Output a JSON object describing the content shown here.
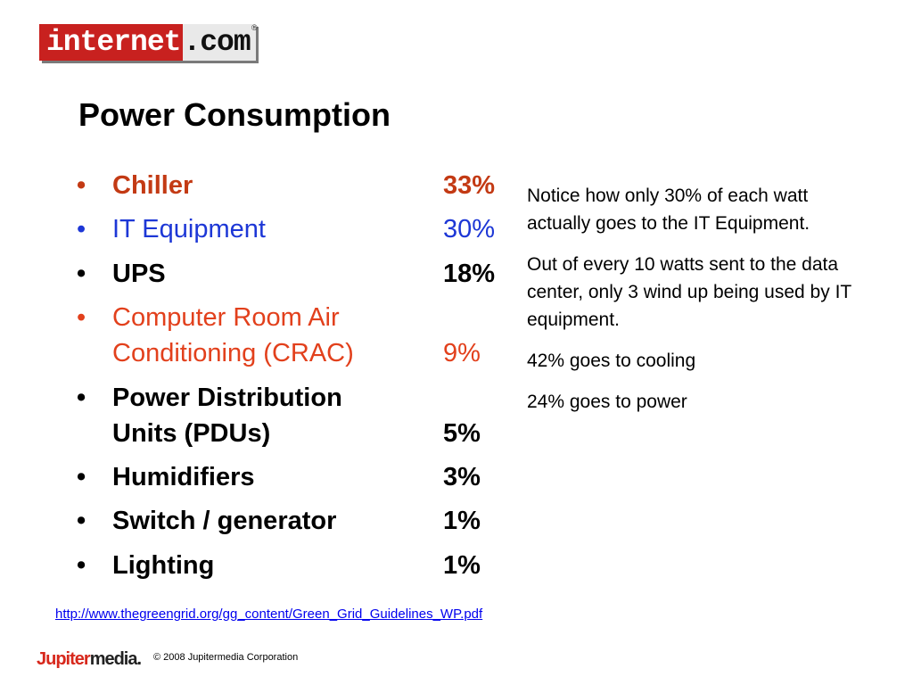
{
  "logo": {
    "left_text": "internet",
    "right_text": ".com",
    "reg_mark": "®"
  },
  "title": "Power Consumption",
  "bullet_glyph": "•",
  "items": [
    {
      "label_lines": [
        "Chiller"
      ],
      "value": "33%",
      "color": "#c33a14",
      "bold": true
    },
    {
      "label_lines": [
        "IT Equipment"
      ],
      "value": "30%",
      "color": "#1d37d6",
      "bold": false
    },
    {
      "label_lines": [
        "UPS"
      ],
      "value": "18%",
      "color": "#000000",
      "bold": true
    },
    {
      "label_lines": [
        "Computer Room Air",
        "Conditioning (CRAC)"
      ],
      "value": "9%",
      "color": "#e2401c",
      "bold": false
    },
    {
      "label_lines": [
        "Power Distribution",
        "Units (PDUs)"
      ],
      "value": "5%",
      "color": "#000000",
      "bold": true
    },
    {
      "label_lines": [
        "Humidifiers"
      ],
      "value": "3%",
      "color": "#000000",
      "bold": true
    },
    {
      "label_lines": [
        "Switch / generator"
      ],
      "value": "1%",
      "color": "#000000",
      "bold": true
    },
    {
      "label_lines": [
        "Lighting"
      ],
      "value": "1%",
      "color": "#000000",
      "bold": true
    }
  ],
  "notes": [
    "Notice how only 30% of each watt actually goes to the IT Equipment.",
    "Out of every 10 watts sent to the data center, only 3 wind up being used by IT equipment.",
    "42% goes to cooling",
    "24% goes to power"
  ],
  "source_link": "http://www.thegreengrid.org/gg_content/Green_Grid_Guidelines_WP.pdf",
  "footer": {
    "logo_part1": "Jupiter",
    "logo_part2": "media.",
    "copyright": "© 2008 Jupitermedia Corporation"
  }
}
